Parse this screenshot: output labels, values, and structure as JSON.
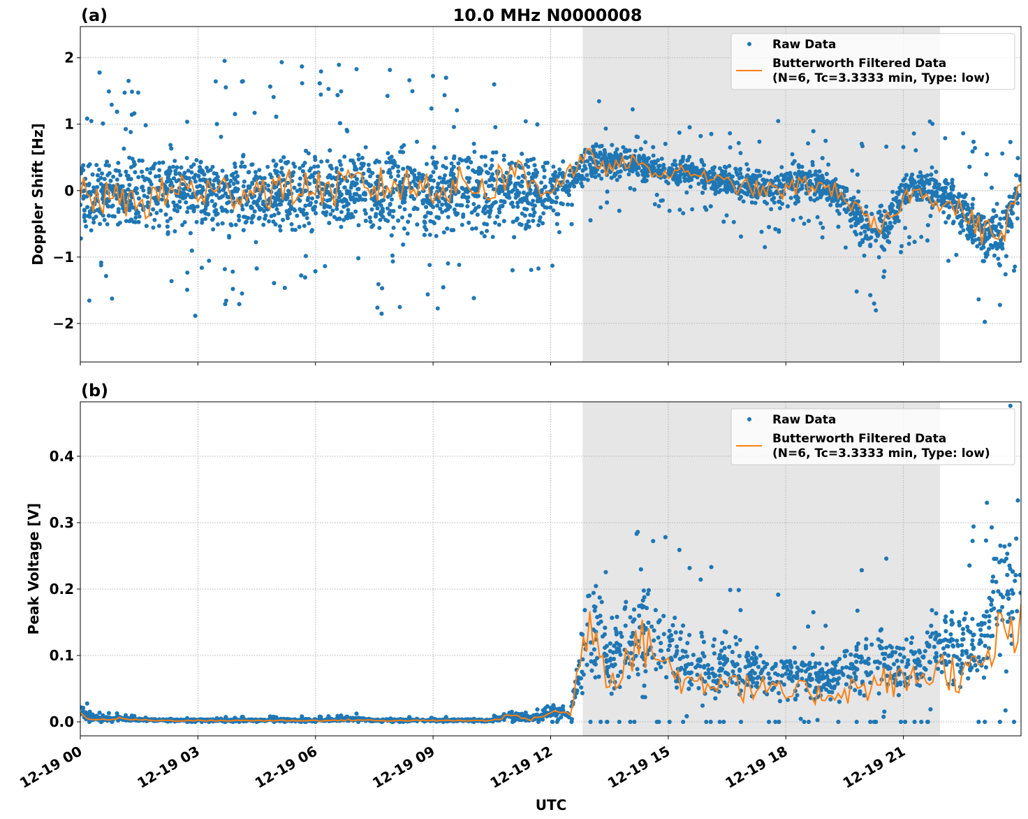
{
  "title": "10.0 MHz N0000008",
  "xlabel": "UTC",
  "legend": {
    "raw_label": "Raw Data",
    "filtered_label_line1": "Butterworth Filtered Data",
    "filtered_label_line2": "(N=6, Tc=3.3333 min, Type: low)"
  },
  "colors": {
    "raw": "#1f77b4",
    "filtered": "#ff7f0e",
    "shade": "#e6e6e6",
    "grid": "#b0b0b0"
  },
  "chart_data": [
    {
      "type": "scatter+line",
      "panel_label": "(a)",
      "ylabel": "Doppler Shift [Hz]",
      "date": "12-19",
      "xlim": [
        "12-19 00:00",
        "12-20 00:00"
      ],
      "ylim": [
        -2.58,
        2.47
      ],
      "yticks": [
        2,
        1,
        0,
        -1,
        -2
      ],
      "ytick_labels": [
        "2",
        "1",
        "0",
        "−1",
        "−2"
      ],
      "xtick_labels": [
        "12-19 00",
        "12-19 03",
        "12-19 06",
        "12-19 09",
        "12-19 12",
        "12-19 15",
        "12-19 18",
        "12-19 21"
      ],
      "grid": true,
      "legend_position": "top-right",
      "shaded_span": [
        "12:49",
        "21:56"
      ],
      "x_times": [
        "00:00",
        "00:30",
        "01:00",
        "01:30",
        "02:00",
        "02:30",
        "03:00",
        "03:30",
        "04:00",
        "04:30",
        "05:00",
        "05:30",
        "06:00",
        "06:30",
        "07:00",
        "07:30",
        "08:00",
        "08:30",
        "09:00",
        "09:30",
        "10:00",
        "10:30",
        "11:00",
        "11:30",
        "12:00",
        "12:30",
        "13:00",
        "13:30",
        "14:00",
        "14:30",
        "15:00",
        "15:30",
        "16:00",
        "16:30",
        "17:00",
        "17:30",
        "18:00",
        "18:30",
        "19:00",
        "19:30",
        "20:00",
        "20:30",
        "21:00",
        "21:30",
        "22:00",
        "22:30",
        "23:00",
        "23:30",
        "24:00"
      ],
      "filtered": [
        -0.05,
        -0.1,
        -0.15,
        -0.2,
        -0.1,
        0.05,
        0.0,
        -0.05,
        0.0,
        0.05,
        0.0,
        0.05,
        0.05,
        0.0,
        0.1,
        0.05,
        0.1,
        0.05,
        0.1,
        0.05,
        0.1,
        0.05,
        0.35,
        0.1,
        0.05,
        0.3,
        0.5,
        0.3,
        0.45,
        0.3,
        0.25,
        0.3,
        0.2,
        0.1,
        0.05,
        0.0,
        0.0,
        0.1,
        0.05,
        -0.05,
        -0.5,
        -0.6,
        -0.1,
        0.0,
        -0.2,
        -0.3,
        -0.6,
        -0.7,
        0.1
      ],
      "raw_low": [
        -0.8,
        -0.85,
        -0.85,
        -0.9,
        -0.85,
        -0.85,
        -0.9,
        -0.9,
        -0.9,
        -0.85,
        -0.9,
        -0.85,
        -0.8,
        -0.85,
        -0.8,
        -0.85,
        -0.85,
        -0.9,
        -0.9,
        -0.85,
        -0.85,
        -0.9,
        -0.8,
        -0.9,
        -0.6,
        -0.3,
        0.0,
        0.05,
        0.1,
        0.1,
        0.0,
        0.0,
        -0.1,
        -0.2,
        -0.3,
        -0.4,
        -0.4,
        -0.3,
        -0.3,
        -0.5,
        -1.2,
        -1.2,
        -0.4,
        -0.3,
        -0.5,
        -0.8,
        -1.3,
        -1.4,
        -0.3
      ],
      "raw_high": [
        0.7,
        0.75,
        0.7,
        0.75,
        0.8,
        0.85,
        0.85,
        0.85,
        0.8,
        0.8,
        0.85,
        0.8,
        0.8,
        0.75,
        0.85,
        0.85,
        0.9,
        0.9,
        0.85,
        0.9,
        0.9,
        0.95,
        0.8,
        0.9,
        0.5,
        0.6,
        0.9,
        0.7,
        0.8,
        0.6,
        0.5,
        0.6,
        0.5,
        0.5,
        0.5,
        0.4,
        0.5,
        0.6,
        0.4,
        0.3,
        0.0,
        0.0,
        0.4,
        0.5,
        0.4,
        0.2,
        0.0,
        -0.1,
        0.5
      ]
    },
    {
      "type": "scatter+line",
      "panel_label": "(b)",
      "ylabel": "Peak Voltage [V]",
      "date": "12-19",
      "xlim": [
        "12-19 00:00",
        "12-20 00:00"
      ],
      "ylim": [
        -0.021,
        0.482
      ],
      "yticks": [
        0.0,
        0.1,
        0.2,
        0.3,
        0.4
      ],
      "ytick_labels": [
        "0.0",
        "0.1",
        "0.2",
        "0.3",
        "0.4"
      ],
      "xtick_labels": [
        "12-19 00",
        "12-19 03",
        "12-19 06",
        "12-19 09",
        "12-19 12",
        "12-19 15",
        "12-19 18",
        "12-19 21"
      ],
      "grid": true,
      "legend_position": "top-right",
      "shaded_span": [
        "12:49",
        "21:56"
      ],
      "x_times": [
        "00:00",
        "00:30",
        "01:00",
        "01:30",
        "02:00",
        "02:30",
        "03:00",
        "03:30",
        "04:00",
        "04:30",
        "05:00",
        "05:30",
        "06:00",
        "06:30",
        "07:00",
        "07:30",
        "08:00",
        "08:30",
        "09:00",
        "09:30",
        "10:00",
        "10:30",
        "11:00",
        "11:30",
        "12:00",
        "12:30",
        "13:00",
        "13:30",
        "14:00",
        "14:30",
        "15:00",
        "15:30",
        "16:00",
        "16:30",
        "17:00",
        "17:30",
        "18:00",
        "18:30",
        "19:00",
        "19:30",
        "20:00",
        "20:30",
        "21:00",
        "21:30",
        "22:00",
        "22:30",
        "23:00",
        "23:30",
        "24:00"
      ],
      "filtered": [
        0.01,
        0.003,
        0.005,
        0.003,
        0.002,
        0.002,
        0.002,
        0.002,
        0.002,
        0.002,
        0.002,
        0.002,
        0.002,
        0.002,
        0.003,
        0.002,
        0.002,
        0.002,
        0.002,
        0.002,
        0.002,
        0.002,
        0.01,
        0.003,
        0.015,
        0.012,
        0.17,
        0.06,
        0.11,
        0.12,
        0.08,
        0.06,
        0.06,
        0.07,
        0.05,
        0.05,
        0.04,
        0.045,
        0.04,
        0.05,
        0.05,
        0.06,
        0.06,
        0.07,
        0.08,
        0.07,
        0.08,
        0.13,
        0.14
      ],
      "raw_low": [
        0.0,
        0.0,
        0.0,
        0.0,
        0.0,
        0.0,
        0.0,
        0.0,
        0.0,
        0.0,
        0.0,
        0.0,
        0.0,
        0.0,
        0.0,
        0.0,
        0.0,
        0.0,
        0.0,
        0.0,
        0.0,
        0.0,
        0.0,
        0.0,
        0.0,
        0.0,
        0.01,
        0.01,
        0.02,
        0.02,
        0.02,
        0.015,
        0.015,
        0.015,
        0.015,
        0.015,
        0.015,
        0.015,
        0.015,
        0.015,
        0.015,
        0.02,
        0.02,
        0.02,
        0.02,
        0.03,
        0.03,
        0.04,
        0.04
      ],
      "raw_high": [
        0.03,
        0.008,
        0.01,
        0.006,
        0.005,
        0.005,
        0.005,
        0.005,
        0.005,
        0.005,
        0.006,
        0.005,
        0.005,
        0.006,
        0.008,
        0.006,
        0.005,
        0.005,
        0.005,
        0.005,
        0.005,
        0.005,
        0.02,
        0.01,
        0.03,
        0.025,
        0.3,
        0.15,
        0.25,
        0.25,
        0.2,
        0.15,
        0.15,
        0.17,
        0.15,
        0.12,
        0.12,
        0.13,
        0.1,
        0.15,
        0.15,
        0.17,
        0.15,
        0.18,
        0.2,
        0.2,
        0.2,
        0.35,
        0.3
      ]
    }
  ]
}
